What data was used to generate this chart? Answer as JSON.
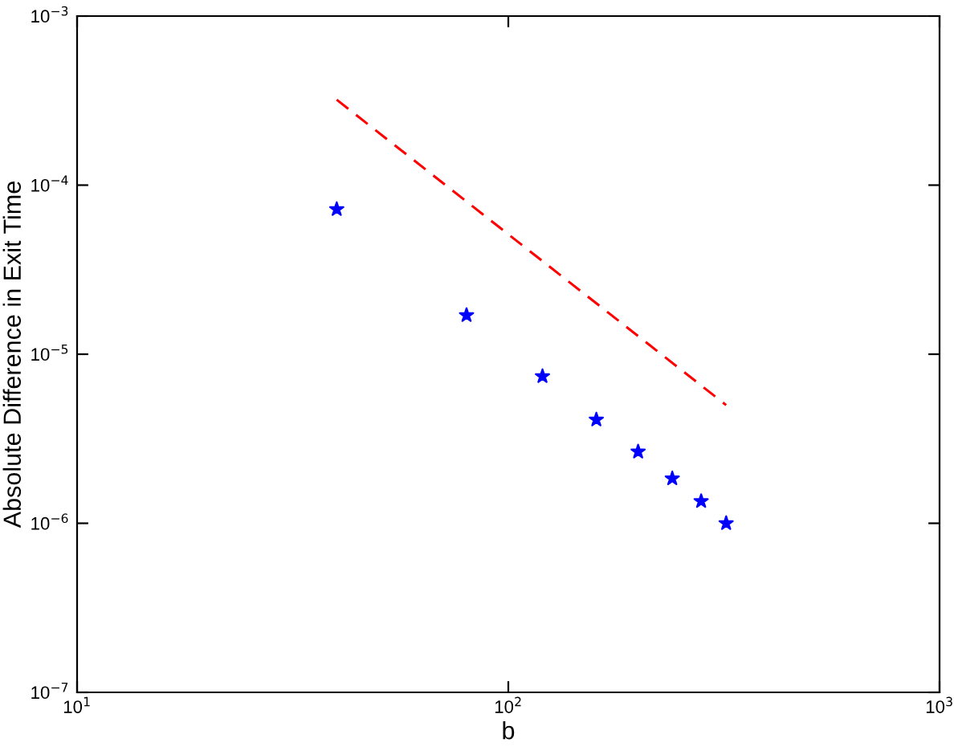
{
  "chart_data": {
    "type": "scatter",
    "xlabel": "b",
    "ylabel": "Absolute Difference in Exit Time",
    "log": "xy",
    "grid": false,
    "legend": false,
    "xlim": [
      10,
      1000
    ],
    "ylim": [
      1e-07,
      0.001
    ],
    "xticks": [
      {
        "value": 10,
        "label": "10$^{1}$"
      },
      {
        "value": 100,
        "label": "10$^{2}$"
      },
      {
        "value": 1000,
        "label": "10$^{3}$"
      }
    ],
    "yticks": [
      {
        "value": 1e-07,
        "label": "10$^{−7}$"
      },
      {
        "value": 1e-06,
        "label": "10$^{−6}$"
      },
      {
        "value": 1e-05,
        "label": "10$^{−5}$"
      },
      {
        "value": 0.0001,
        "label": "10$^{−4}$"
      },
      {
        "value": 0.001,
        "label": "10$^{−3}$"
      }
    ],
    "series": [
      {
        "type": "scatter",
        "marker": "star",
        "color": "#0000ff",
        "x": [
          40,
          80,
          120,
          160,
          200,
          240,
          280,
          320
        ],
        "values": [
          7.2e-05,
          1.7e-05,
          7.4e-06,
          4.1e-06,
          2.65e-06,
          1.84e-06,
          1.35e-06,
          1e-06
        ]
      },
      {
        "type": "line",
        "marker": "none",
        "line_style": "dashed",
        "color": "#ff0000",
        "x": [
          40,
          320
        ],
        "values": [
          0.00032,
          5e-06
        ]
      }
    ]
  }
}
